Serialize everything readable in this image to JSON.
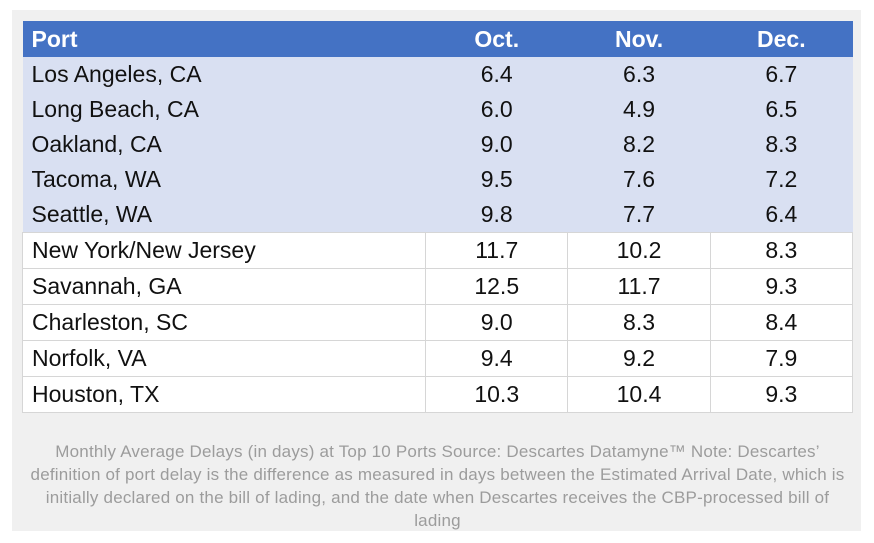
{
  "chart_data": {
    "type": "table",
    "title": "Monthly Average Delays (in days) at Top 10 Ports",
    "columns": [
      "Port",
      "Oct.",
      "Nov.",
      "Dec."
    ],
    "rows": [
      {
        "port": "Los Angeles, CA",
        "values": [
          "6.4",
          "6.3",
          "6.7"
        ]
      },
      {
        "port": "Long Beach, CA",
        "values": [
          "6.0",
          "4.9",
          "6.5"
        ]
      },
      {
        "port": "Oakland, CA",
        "values": [
          "9.0",
          "8.2",
          "8.3"
        ]
      },
      {
        "port": "Tacoma, WA",
        "values": [
          "9.5",
          "7.6",
          "7.2"
        ]
      },
      {
        "port": "Seattle, WA",
        "values": [
          "9.8",
          "7.7",
          "6.4"
        ]
      },
      {
        "port": "New York/New Jersey",
        "values": [
          "11.7",
          "10.2",
          "8.3"
        ]
      },
      {
        "port": "Savannah, GA",
        "values": [
          "12.5",
          "11.7",
          "9.3"
        ]
      },
      {
        "port": "Charleston, SC",
        "values": [
          "9.0",
          "8.3",
          "8.4"
        ]
      },
      {
        "port": "Norfolk, VA",
        "values": [
          "9.4",
          "9.2",
          "7.9"
        ]
      },
      {
        "port": "Houston, TX",
        "values": [
          "10.3",
          "10.4",
          "9.3"
        ]
      }
    ],
    "shaded_row_count": 5,
    "layout_hints": {
      "shaded_rows_have_no_gridlines": true,
      "white_rows_have_gridlines": true,
      "value_alignment": "center",
      "port_alignment": "left"
    }
  },
  "caption": {
    "text": "Monthly Average Delays (in days) at Top 10 Ports Source: Descartes Datamyne™ Note: Descartes’ definition of port delay is the difference as measured in days between the Estimated Arrival Date, which is initially declared on the bill of lading, and the date when Descartes receives the CBP-processed bill of lading"
  },
  "colors": {
    "header_bg": "#4472C4",
    "header_text": "#FFFFFF",
    "shaded_row_bg": "#D9E0F2",
    "row_border": "#D6D6D6",
    "card_bg": "#F0F0F0",
    "page_bg": "#FFFFFF",
    "caption_text": "#9C9C9C",
    "body_text": "#111111"
  }
}
